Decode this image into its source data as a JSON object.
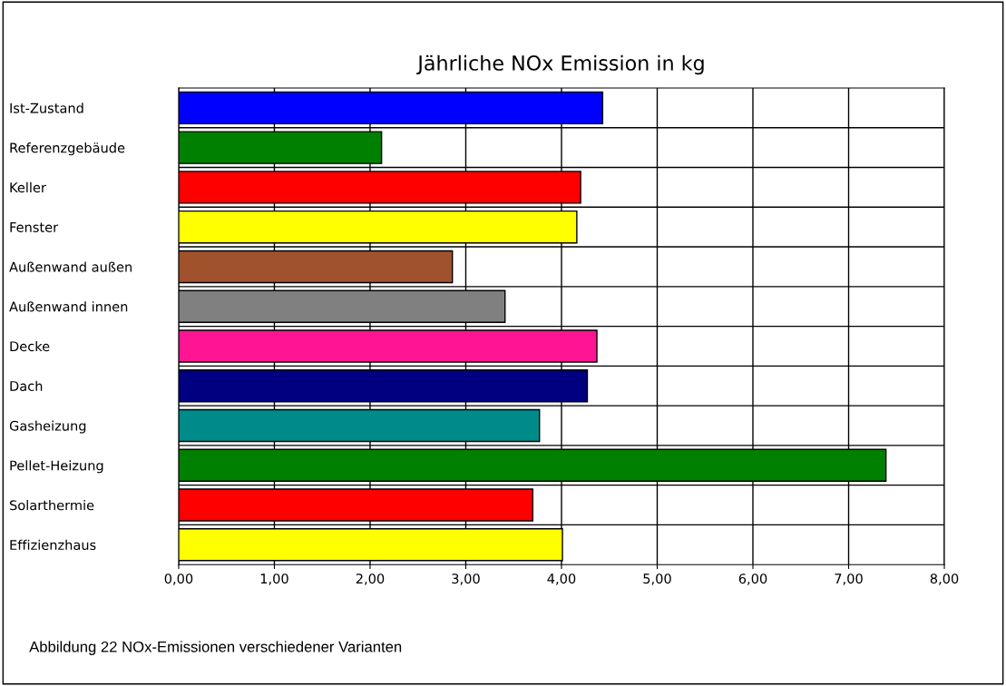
{
  "chart_data": {
    "type": "bar",
    "orientation": "horizontal",
    "title": "Jährliche NOx Emission in kg",
    "categories": [
      "Ist-Zustand",
      "Referenzgebäude",
      "Keller",
      "Fenster",
      "Außenwand außen",
      "Außenwand innen",
      "Decke",
      "Dach",
      "Gasheizung",
      "Pellet-Heizung",
      "Solarthermie",
      "Effizienzhaus"
    ],
    "values": [
      4.43,
      2.12,
      4.2,
      4.16,
      2.86,
      3.41,
      4.37,
      4.27,
      3.77,
      7.39,
      3.7,
      4.01
    ],
    "colors": [
      "#0000ff",
      "#008000",
      "#ff0000",
      "#ffff00",
      "#a0522d",
      "#808080",
      "#ff1493",
      "#000080",
      "#008b8b",
      "#008000",
      "#ff0000",
      "#ffff00"
    ],
    "xlim": [
      0,
      8
    ],
    "xticks": [
      {
        "value": 0,
        "label": "0,00"
      },
      {
        "value": 1,
        "label": "1,00"
      },
      {
        "value": 2,
        "label": "2,00"
      },
      {
        "value": 3,
        "label": "3,00"
      },
      {
        "value": 4,
        "label": "4,00"
      },
      {
        "value": 5,
        "label": "5,00"
      },
      {
        "value": 6,
        "label": "6,00"
      },
      {
        "value": 7,
        "label": "7,00"
      },
      {
        "value": 8,
        "label": "8,00"
      }
    ],
    "grid": true,
    "legend": false,
    "annotations": [
      "Abbildung 22 NOx-Emissionen verschiedener Varianten"
    ]
  }
}
